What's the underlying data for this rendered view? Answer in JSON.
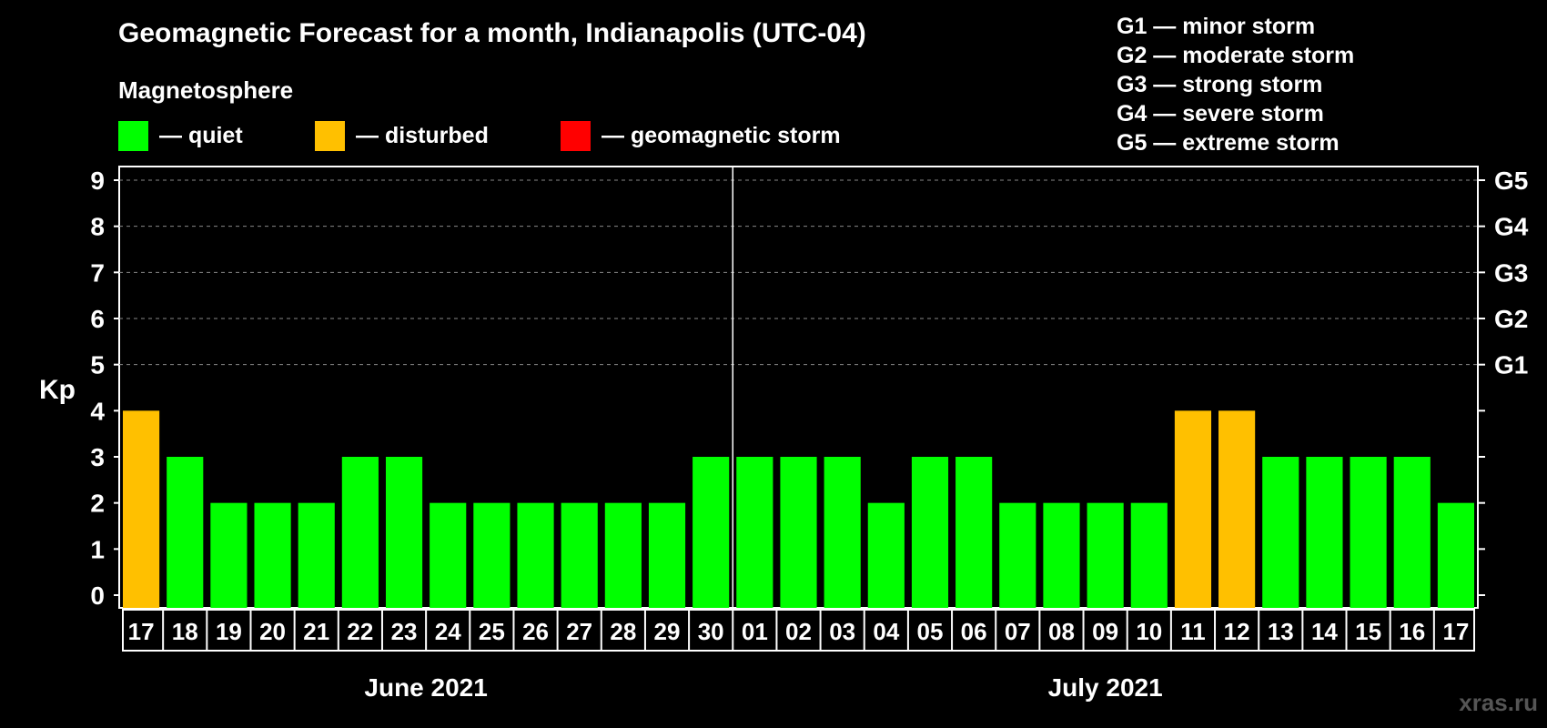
{
  "title": "Geomagnetic Forecast for a month, Indianapolis (UTC-04)",
  "subtitle": "Magnetosphere",
  "legend": [
    {
      "label": "— quiet",
      "color": "#00ff00"
    },
    {
      "label": "— disturbed",
      "color": "#ffc000"
    },
    {
      "label": "— geomagnetic storm",
      "color": "#ff0000"
    }
  ],
  "storm_scale": [
    "G1 — minor storm",
    "G2 — moderate storm",
    "G3 — strong storm",
    "G4 — severe storm",
    "G5 — extreme storm"
  ],
  "watermark": "xras.ru",
  "chart_data": {
    "type": "bar",
    "title": "Geomagnetic Forecast for a month, Indianapolis (UTC-04)",
    "ylabel": "Kp",
    "ylim": [
      0,
      9
    ],
    "yticks": [
      "0",
      "1",
      "2",
      "3",
      "4",
      "5",
      "6",
      "7",
      "8",
      "9"
    ],
    "right_ticks": [
      {
        "value": 5,
        "label": "G1"
      },
      {
        "value": 6,
        "label": "G2"
      },
      {
        "value": 7,
        "label": "G3"
      },
      {
        "value": 8,
        "label": "G4"
      },
      {
        "value": 9,
        "label": "G5"
      }
    ],
    "grid": "dashed horizontal at 5-9",
    "categories": [
      "17",
      "18",
      "19",
      "20",
      "21",
      "22",
      "23",
      "24",
      "25",
      "26",
      "27",
      "28",
      "29",
      "30",
      "01",
      "02",
      "03",
      "04",
      "05",
      "06",
      "07",
      "08",
      "09",
      "10",
      "11",
      "12",
      "13",
      "14",
      "15",
      "16",
      "17"
    ],
    "values": [
      4,
      3,
      2,
      2,
      2,
      3,
      3,
      2,
      2,
      2,
      2,
      2,
      2,
      3,
      3,
      3,
      3,
      2,
      3,
      3,
      2,
      2,
      2,
      2,
      4,
      4,
      3,
      3,
      3,
      3,
      2
    ],
    "status": [
      "disturbed",
      "quiet",
      "quiet",
      "quiet",
      "quiet",
      "quiet",
      "quiet",
      "quiet",
      "quiet",
      "quiet",
      "quiet",
      "quiet",
      "quiet",
      "quiet",
      "quiet",
      "quiet",
      "quiet",
      "quiet",
      "quiet",
      "quiet",
      "quiet",
      "quiet",
      "quiet",
      "quiet",
      "disturbed",
      "disturbed",
      "quiet",
      "quiet",
      "quiet",
      "quiet",
      "quiet"
    ],
    "months": [
      {
        "label": "June 2021",
        "from": 0,
        "to": 13
      },
      {
        "label": "July 2021",
        "from": 14,
        "to": 30
      }
    ]
  }
}
